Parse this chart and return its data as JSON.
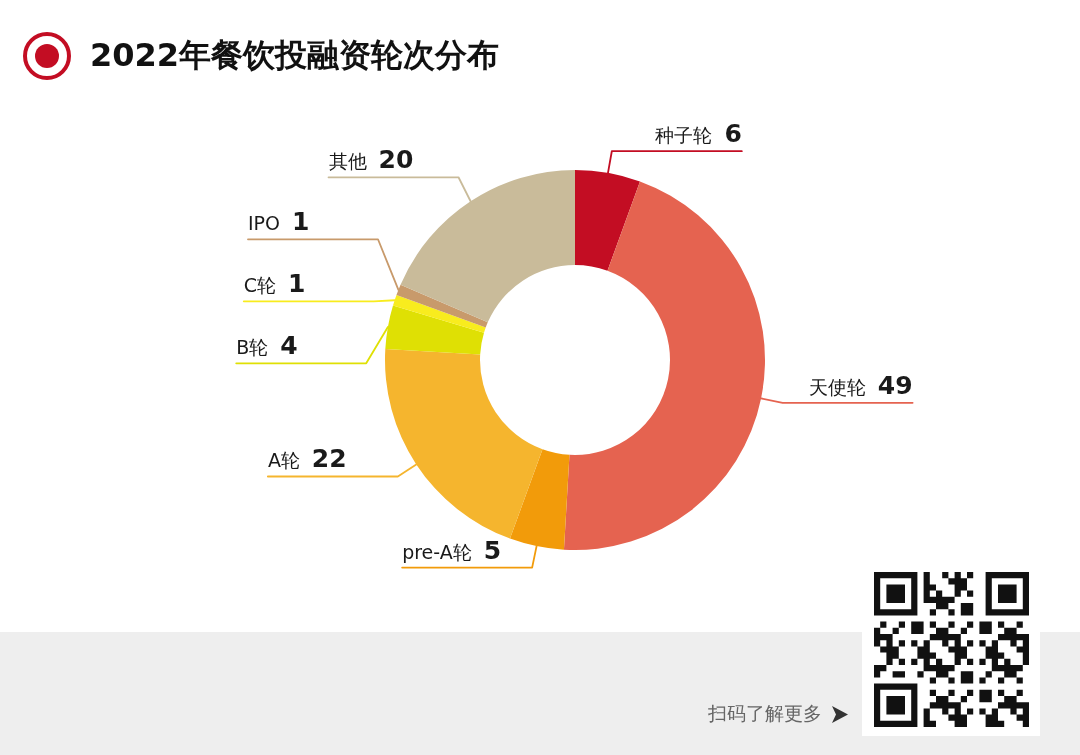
{
  "chart_data": {
    "type": "donut",
    "title": "2022年餐饮投融资轮次分布",
    "categories": [
      "种子轮",
      "天使轮",
      "pre-A轮",
      "A轮",
      "B轮",
      "C轮",
      "IPO",
      "其他"
    ],
    "values": [
      6,
      49,
      5,
      22,
      4,
      1,
      1,
      20
    ],
    "colors": [
      "#c30d23",
      "#e56350",
      "#f29b0a",
      "#f5b52e",
      "#dfe004",
      "#f8ec1e",
      "#c89a6b",
      "#c9bb9a"
    ],
    "data_labels": true,
    "annotations": [
      "扫码了解更多"
    ]
  }
}
